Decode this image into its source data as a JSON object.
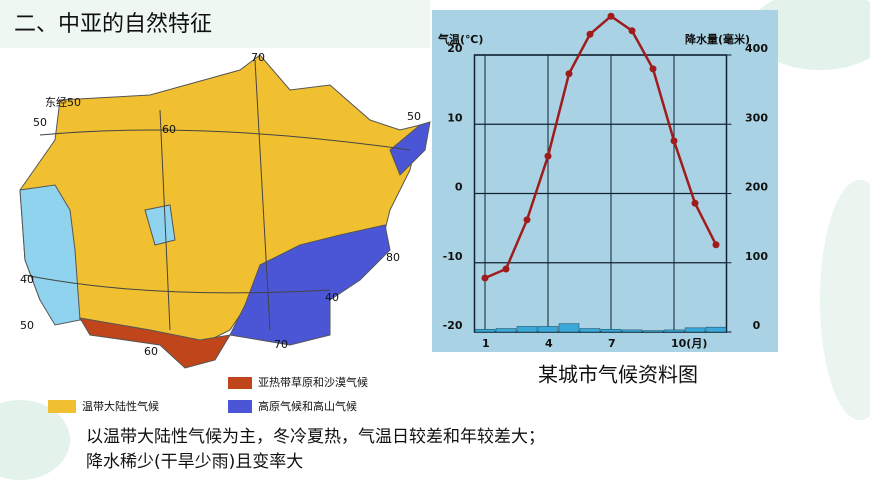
{
  "header": {
    "title": "二、中亚的自然特征"
  },
  "map": {
    "labels": [
      "东经50",
      "50",
      "60",
      "70",
      "50",
      "80",
      "40",
      "40",
      "50",
      "60",
      "70"
    ],
    "legend": [
      "温带大陆性气候",
      "亚热带草原和沙漠气候",
      "高原气候和高山气候"
    ]
  },
  "chart_data": {
    "type": "line",
    "y_label": "气温(℃)",
    "y2_label": "降水量(毫米)",
    "x": [
      1,
      2,
      3,
      4,
      5,
      6,
      7,
      8,
      9,
      10,
      11,
      12
    ],
    "xlim": [
      0.5,
      12.5
    ],
    "xticks": [
      1,
      4,
      7,
      {
        "value": 10,
        "label": "10(月)"
      }
    ],
    "ylim": [
      -20,
      20
    ],
    "yticks": [
      -20,
      -10,
      0,
      10,
      20
    ],
    "y2lim": [
      0,
      400
    ],
    "y2ticks": [
      0,
      100,
      200,
      300,
      400
    ],
    "grid": true,
    "series": [
      {
        "name": "气温",
        "color": "#a01c1c",
        "values": [
          -12.2,
          -10.9,
          -3.8,
          5.4,
          17.3,
          23.0,
          25.6,
          23.5,
          18.0,
          7.6,
          -1.4,
          -7.4
        ]
      },
      {
        "name": "降水量",
        "color": "#3aa8d8",
        "axis": "y2",
        "type": "bar",
        "values": [
          4,
          5,
          8,
          8,
          12,
          5,
          4,
          3,
          2,
          3,
          6,
          7
        ]
      }
    ]
  },
  "caption": "某城市气候资料图",
  "text": [
    "以温带大陆性气候为主，冬冷夏热，气温日较差和年较差大；",
    "降水稀少(干旱少雨)且变率大"
  ]
}
